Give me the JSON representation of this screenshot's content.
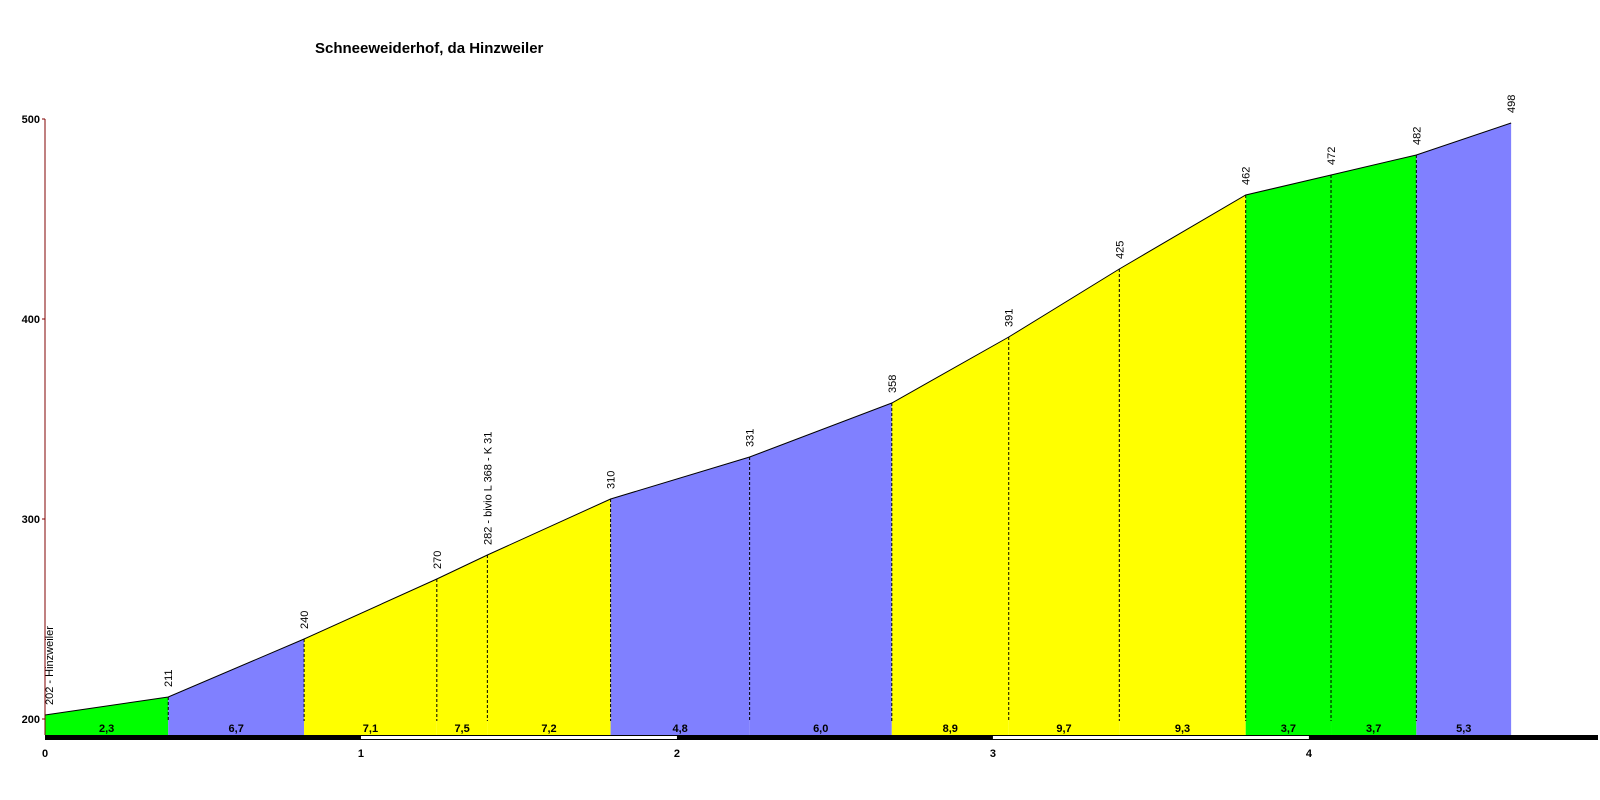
{
  "chart_data": {
    "type": "climb-profile",
    "title": "Schneeweiderhof, da Hinzweiler",
    "x": [
      0,
      0.39,
      0.82,
      1.24,
      1.4,
      1.79,
      2.23,
      2.68,
      3.05,
      3.4,
      3.8,
      4.07,
      4.34,
      4.64
    ],
    "values": [
      202,
      211,
      240,
      270,
      282,
      310,
      331,
      358,
      391,
      425,
      462,
      472,
      482,
      498
    ],
    "value_labels": [
      "202 - Hinzweiler",
      "211",
      "240",
      "270",
      "282 - bivio L 368 - K 31",
      "310",
      "331",
      "358",
      "391",
      "425",
      "462",
      "472",
      "482",
      "498"
    ],
    "gradients": [
      2.3,
      6.7,
      7.1,
      7.5,
      7.2,
      4.8,
      6.0,
      8.9,
      9.7,
      9.3,
      3.7,
      3.7,
      5.3
    ],
    "gradient_labels": [
      "2,3",
      "6,7",
      "7,1",
      "7,5",
      "7,2",
      "4,8",
      "6,0",
      "8,9",
      "9,7",
      "9,3",
      "3,7",
      "3,7",
      "5,3"
    ],
    "segment_colors": [
      "#00ff00",
      "#8080ff",
      "#ffff00",
      "#ffff00",
      "#ffff00",
      "#8080ff",
      "#8080ff",
      "#ffff00",
      "#ffff00",
      "#ffff00",
      "#00ff00",
      "#00ff00",
      "#8080ff"
    ],
    "xlim": [
      0,
      4.82
    ],
    "ylim": [
      192,
      500
    ],
    "xticks": [
      0,
      1,
      2,
      3,
      4
    ],
    "yticks": [
      200,
      300,
      400,
      500
    ]
  }
}
